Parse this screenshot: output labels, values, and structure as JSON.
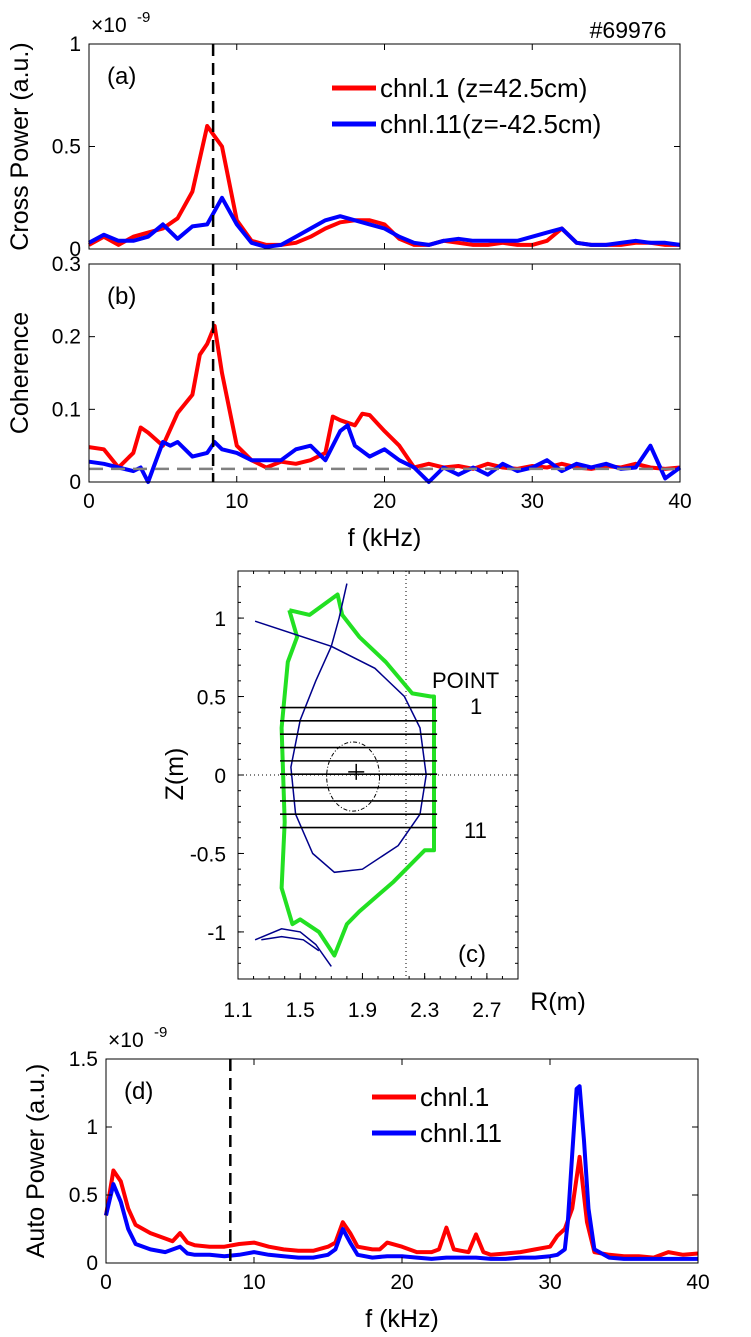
{
  "chart_data": [
    {
      "id": "a",
      "type": "line",
      "panel_label": "(a)",
      "ylabel": "Cross Power (a.u.)",
      "xlabel": "",
      "xlim": [
        0,
        40
      ],
      "ylim": [
        0,
        1
      ],
      "yticks": [
        "0",
        "0.5",
        "1"
      ],
      "xticks": [],
      "exponent": "×10",
      "exponent_power": "-9",
      "shot": "#69976",
      "vline_x": 8.4,
      "legend": [
        "chnl.1 (z=42.5cm)",
        "chnl.11(z=-42.5cm)"
      ],
      "series": [
        {
          "name": "chnl.1 (z=42.5cm)",
          "color": "#ff0000",
          "x": [
            0,
            1,
            2,
            3,
            4,
            5,
            6,
            7,
            8,
            8.5,
            9,
            10,
            11,
            12,
            13,
            14,
            15,
            16,
            17,
            18,
            19,
            20,
            21,
            22,
            23,
            24,
            25,
            26,
            27,
            28,
            29,
            30,
            31,
            32,
            33,
            34,
            35,
            36,
            37,
            38,
            39,
            40
          ],
          "y": [
            0.02,
            0.06,
            0.02,
            0.06,
            0.08,
            0.1,
            0.15,
            0.28,
            0.6,
            0.55,
            0.5,
            0.14,
            0.04,
            0.02,
            0.02,
            0.03,
            0.06,
            0.1,
            0.13,
            0.14,
            0.14,
            0.12,
            0.05,
            0.02,
            0.02,
            0.04,
            0.03,
            0.02,
            0.02,
            0.03,
            0.02,
            0.02,
            0.04,
            0.1,
            0.03,
            0.02,
            0.02,
            0.02,
            0.03,
            0.03,
            0.02,
            0.02
          ]
        },
        {
          "name": "chnl.11(z=-42.5cm)",
          "color": "#0000ff",
          "x": [
            0,
            1,
            2,
            3,
            4,
            5,
            6,
            7,
            8,
            9,
            10,
            11,
            12,
            13,
            14,
            15,
            16,
            17,
            18,
            19,
            20,
            21,
            22,
            23,
            24,
            25,
            26,
            27,
            28,
            29,
            30,
            31,
            32,
            33,
            34,
            35,
            36,
            37,
            38,
            39,
            40
          ],
          "y": [
            0.03,
            0.07,
            0.04,
            0.04,
            0.06,
            0.12,
            0.05,
            0.11,
            0.12,
            0.25,
            0.12,
            0.03,
            0.01,
            0.02,
            0.06,
            0.1,
            0.14,
            0.16,
            0.14,
            0.12,
            0.1,
            0.06,
            0.03,
            0.02,
            0.04,
            0.05,
            0.04,
            0.04,
            0.04,
            0.04,
            0.06,
            0.08,
            0.1,
            0.03,
            0.02,
            0.02,
            0.03,
            0.04,
            0.03,
            0.03,
            0.02
          ]
        }
      ]
    },
    {
      "id": "b",
      "type": "line",
      "panel_label": "(b)",
      "ylabel": "Coherence",
      "xlabel": "f (kHz)",
      "xlim": [
        0,
        40
      ],
      "ylim": [
        0,
        0.3
      ],
      "yticks": [
        "0",
        "0.1",
        "0.2",
        "0.3"
      ],
      "xticks": [
        "0",
        "10",
        "20",
        "30",
        "40"
      ],
      "vline_x": 8.4,
      "hline_y": 0.018,
      "series": [
        {
          "name": "chnl.1",
          "color": "#ff0000",
          "x": [
            0,
            1,
            2,
            3,
            3.5,
            4,
            5,
            6,
            7,
            7.5,
            8,
            8.5,
            9,
            10,
            11,
            12,
            13,
            14,
            15,
            16,
            16.5,
            17,
            18,
            18.5,
            19,
            20,
            21,
            22,
            23,
            24,
            25,
            26,
            27,
            28,
            29,
            30,
            31,
            32,
            33,
            34,
            35,
            36,
            37,
            38,
            39,
            40
          ],
          "y": [
            0.048,
            0.045,
            0.02,
            0.04,
            0.075,
            0.068,
            0.05,
            0.095,
            0.12,
            0.175,
            0.19,
            0.215,
            0.15,
            0.05,
            0.03,
            0.02,
            0.028,
            0.025,
            0.03,
            0.04,
            0.09,
            0.085,
            0.078,
            0.094,
            0.092,
            0.07,
            0.05,
            0.02,
            0.025,
            0.02,
            0.022,
            0.018,
            0.025,
            0.02,
            0.018,
            0.022,
            0.02,
            0.025,
            0.02,
            0.018,
            0.022,
            0.02,
            0.025,
            0.02,
            0.018,
            0.02
          ]
        },
        {
          "name": "chnl.11",
          "color": "#0000ff",
          "x": [
            0,
            1,
            2,
            3,
            3.5,
            4,
            5,
            5.5,
            6,
            7,
            8,
            8.5,
            9,
            10,
            11,
            12,
            13,
            14,
            15,
            16,
            17,
            17.5,
            18,
            19,
            20,
            21,
            22,
            23,
            24,
            25,
            26,
            27,
            28,
            29,
            30,
            31,
            32,
            33,
            34,
            35,
            36,
            37,
            38,
            39,
            40
          ],
          "y": [
            0.028,
            0.025,
            0.02,
            0.015,
            0.02,
            0.0,
            0.055,
            0.05,
            0.055,
            0.035,
            0.04,
            0.055,
            0.045,
            0.04,
            0.03,
            0.03,
            0.03,
            0.045,
            0.05,
            0.03,
            0.07,
            0.078,
            0.05,
            0.035,
            0.045,
            0.03,
            0.02,
            0.0,
            0.02,
            0.01,
            0.02,
            0.01,
            0.025,
            0.015,
            0.02,
            0.03,
            0.015,
            0.025,
            0.02,
            0.025,
            0.018,
            0.02,
            0.05,
            0.005,
            0.02
          ]
        }
      ]
    },
    {
      "id": "c",
      "type": "diagram",
      "panel_label": "(c)",
      "ylabel": "Z(m)",
      "xlabel": "R(m)",
      "xlim": [
        1.1,
        2.9
      ],
      "ylim": [
        -1.3,
        1.3
      ],
      "xticks": [
        "1.1",
        "1.5",
        "1.9",
        "2.3",
        "2.7"
      ],
      "yticks": [
        "1",
        "0.5",
        "0",
        "-0.5",
        "-1"
      ],
      "label_point": "POINT",
      "label_1": "1",
      "label_11": "11",
      "chord_r_range": [
        1.37,
        2.38
      ],
      "chord_z": [
        0.43,
        0.345,
        0.26,
        0.175,
        0.09,
        0.005,
        -0.08,
        -0.165,
        -0.25,
        -0.335
      ],
      "magnetic_axis": [
        1.86,
        0.02
      ],
      "dotted_r": 2.18,
      "first_wall": [
        [
          1.43,
          1.05
        ],
        [
          1.56,
          1.02
        ],
        [
          1.74,
          1.15
        ],
        [
          1.77,
          1.02
        ],
        [
          1.88,
          0.88
        ],
        [
          2.05,
          0.72
        ],
        [
          2.22,
          0.52
        ],
        [
          2.34,
          0.5
        ],
        [
          2.36,
          0.5
        ],
        [
          2.36,
          -0.48
        ],
        [
          2.3,
          -0.48
        ],
        [
          2.1,
          -0.68
        ],
        [
          1.88,
          -0.87
        ],
        [
          1.8,
          -0.95
        ],
        [
          1.72,
          -1.15
        ],
        [
          1.62,
          -1.0
        ],
        [
          1.5,
          -0.92
        ],
        [
          1.45,
          -0.95
        ],
        [
          1.38,
          -0.72
        ],
        [
          1.4,
          -0.3
        ],
        [
          1.38,
          0.3
        ],
        [
          1.42,
          0.72
        ],
        [
          1.48,
          0.88
        ],
        [
          1.43,
          1.05
        ]
      ],
      "lcfs": [
        [
          1.8,
          1.22
        ],
        [
          1.75,
          1.0
        ],
        [
          1.7,
          0.82
        ],
        [
          1.98,
          0.68
        ],
        [
          2.17,
          0.5
        ],
        [
          2.27,
          0.3
        ],
        [
          2.31,
          0.0
        ],
        [
          2.27,
          -0.25
        ],
        [
          2.13,
          -0.45
        ],
        [
          1.9,
          -0.6
        ],
        [
          1.72,
          -0.62
        ],
        [
          1.58,
          -0.5
        ],
        [
          1.47,
          -0.25
        ],
        [
          1.44,
          0.05
        ],
        [
          1.5,
          0.35
        ],
        [
          1.6,
          0.6
        ],
        [
          1.7,
          0.82
        ],
        [
          1.21,
          0.98
        ]
      ],
      "lower_legs": [
        [
          [
            1.21,
            -1.05
          ],
          [
            1.38,
            -0.98
          ],
          [
            1.5,
            -1.0
          ],
          [
            1.6,
            -1.08
          ],
          [
            1.7,
            -1.22
          ]
        ],
        [
          [
            1.25,
            -1.05
          ],
          [
            1.38,
            -1.03
          ],
          [
            1.52,
            -1.05
          ],
          [
            1.62,
            -1.12
          ]
        ]
      ],
      "inner_flux": {
        "r0": 1.84,
        "z0": -0.01,
        "ra": 0.17,
        "za": 0.22
      }
    },
    {
      "id": "d",
      "type": "line",
      "panel_label": "(d)",
      "ylabel": "Auto Power (a.u.)",
      "xlabel": "f (kHz)",
      "xlim": [
        0,
        40
      ],
      "ylim": [
        0,
        1.5
      ],
      "yticks": [
        "0",
        "0.5",
        "1",
        "1.5"
      ],
      "xticks": [
        "0",
        "10",
        "20",
        "30",
        "40"
      ],
      "exponent": "×10",
      "exponent_power": "-9",
      "vline_x": 8.4,
      "legend": [
        "chnl.1",
        "chnl.11"
      ],
      "series": [
        {
          "name": "chnl.1",
          "color": "#ff0000",
          "x": [
            0,
            0.5,
            1,
            1.5,
            2,
            3,
            4,
            4.5,
            5,
            5.5,
            6,
            7,
            8,
            9,
            10,
            11,
            12,
            13,
            14,
            15,
            15.5,
            16,
            16.5,
            17,
            18,
            18.5,
            19,
            20,
            21,
            22,
            22.5,
            23,
            23.5,
            24,
            24.5,
            25,
            25.5,
            26,
            27,
            28,
            29,
            30,
            30.5,
            31,
            31.5,
            32,
            32.5,
            33,
            34,
            35,
            36,
            37,
            38,
            39,
            40
          ],
          "y": [
            0.35,
            0.68,
            0.6,
            0.4,
            0.28,
            0.22,
            0.18,
            0.16,
            0.22,
            0.15,
            0.13,
            0.12,
            0.12,
            0.14,
            0.15,
            0.12,
            0.1,
            0.09,
            0.09,
            0.12,
            0.15,
            0.3,
            0.22,
            0.12,
            0.1,
            0.1,
            0.15,
            0.12,
            0.08,
            0.08,
            0.1,
            0.26,
            0.1,
            0.09,
            0.08,
            0.21,
            0.08,
            0.06,
            0.07,
            0.08,
            0.1,
            0.12,
            0.2,
            0.25,
            0.4,
            0.78,
            0.3,
            0.08,
            0.06,
            0.05,
            0.05,
            0.04,
            0.08,
            0.06,
            0.07
          ]
        },
        {
          "name": "chnl.11",
          "color": "#0000ff",
          "x": [
            0,
            0.5,
            1,
            1.5,
            2,
            3,
            4,
            5,
            5.5,
            6,
            7,
            8,
            9,
            10,
            11,
            12,
            13,
            14,
            15,
            15.5,
            16,
            16.5,
            17,
            18,
            19,
            20,
            21,
            22,
            23,
            24,
            25,
            26,
            27,
            28,
            29,
            30,
            30.5,
            31,
            31.2,
            31.5,
            31.8,
            32,
            32.3,
            32.6,
            33,
            34,
            35,
            36,
            37,
            38,
            39,
            40
          ],
          "y": [
            0.35,
            0.58,
            0.45,
            0.25,
            0.14,
            0.1,
            0.08,
            0.12,
            0.07,
            0.06,
            0.06,
            0.05,
            0.06,
            0.08,
            0.06,
            0.05,
            0.04,
            0.04,
            0.06,
            0.1,
            0.25,
            0.15,
            0.06,
            0.04,
            0.05,
            0.05,
            0.04,
            0.03,
            0.04,
            0.04,
            0.04,
            0.03,
            0.03,
            0.04,
            0.04,
            0.05,
            0.06,
            0.1,
            0.3,
            0.8,
            1.28,
            1.3,
            0.9,
            0.4,
            0.1,
            0.04,
            0.03,
            0.03,
            0.03,
            0.03,
            0.03,
            0.03
          ]
        }
      ]
    }
  ]
}
